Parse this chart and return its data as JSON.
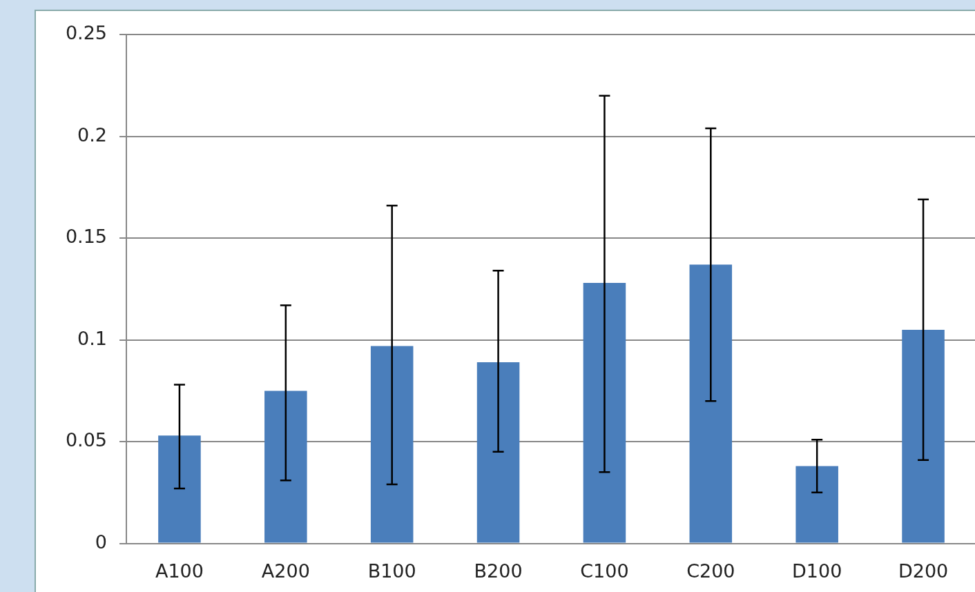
{
  "chart_data": {
    "type": "bar",
    "categories": [
      "A100",
      "A200",
      "B100",
      "B200",
      "C100",
      "C200",
      "D100",
      "D200"
    ],
    "values": [
      0.053,
      0.075,
      0.097,
      0.089,
      0.128,
      0.137,
      0.038,
      0.105
    ],
    "errors": [
      [
        0.027,
        0.078
      ],
      [
        0.031,
        0.117
      ],
      [
        0.029,
        0.166
      ],
      [
        0.045,
        0.134
      ],
      [
        0.035,
        0.22
      ],
      [
        0.07,
        0.204
      ],
      [
        0.025,
        0.051
      ],
      [
        0.041,
        0.169
      ]
    ],
    "color": "#4a7ebb",
    "ylim": [
      0,
      0.25
    ],
    "yticks": [
      0,
      0.05,
      0.1,
      0.15,
      0.2,
      0.25
    ],
    "grid": "y",
    "legend": false
  }
}
